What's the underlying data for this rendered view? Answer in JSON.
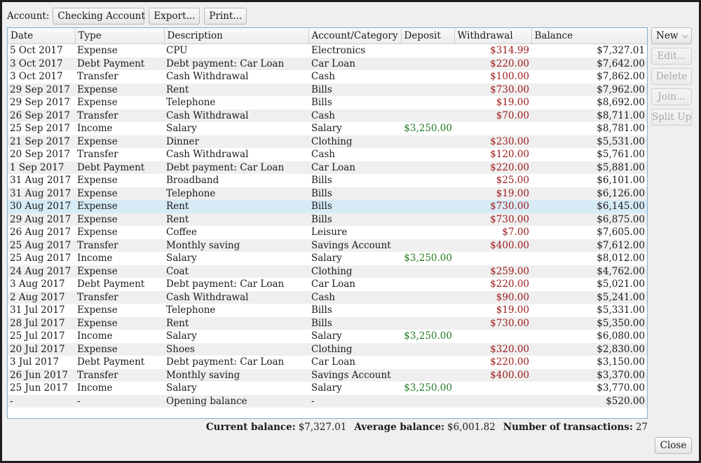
{
  "toolbar": {
    "account_label": "Account:",
    "account_value": "Checking Account",
    "export_label": "Export...",
    "print_label": "Print..."
  },
  "table": {
    "columns": [
      "Date",
      "Type",
      "Description",
      "Account/Category",
      "Deposit",
      "Withdrawal",
      "Balance"
    ],
    "rows": [
      [
        "5 Oct 2017",
        "Expense",
        "CPU",
        "Electronics",
        "",
        "$314.99",
        "$7,327.01"
      ],
      [
        "3 Oct 2017",
        "Debt Payment",
        "Debt payment: Car Loan",
        "Car Loan",
        "",
        "$220.00",
        "$7,642.00"
      ],
      [
        "3 Oct 2017",
        "Transfer",
        "Cash Withdrawal",
        "Cash",
        "",
        "$100.00",
        "$7,862.00"
      ],
      [
        "29 Sep 2017",
        "Expense",
        "Rent",
        "Bills",
        "",
        "$730.00",
        "$7,962.00"
      ],
      [
        "29 Sep 2017",
        "Expense",
        "Telephone",
        "Bills",
        "",
        "$19.00",
        "$8,692.00"
      ],
      [
        "26 Sep 2017",
        "Transfer",
        "Cash Withdrawal",
        "Cash",
        "",
        "$70.00",
        "$8,711.00"
      ],
      [
        "25 Sep 2017",
        "Income",
        "Salary",
        "Salary",
        "$3,250.00",
        "",
        "$8,781.00"
      ],
      [
        "21 Sep 2017",
        "Expense",
        "Dinner",
        "Clothing",
        "",
        "$230.00",
        "$5,531.00"
      ],
      [
        "20 Sep 2017",
        "Transfer",
        "Cash Withdrawal",
        "Cash",
        "",
        "$120.00",
        "$5,761.00"
      ],
      [
        "1 Sep 2017",
        "Debt Payment",
        "Debt payment: Car Loan",
        "Car Loan",
        "",
        "$220.00",
        "$5,881.00"
      ],
      [
        "31 Aug 2017",
        "Expense",
        "Broadband",
        "Bills",
        "",
        "$25.00",
        "$6,101.00"
      ],
      [
        "31 Aug 2017",
        "Expense",
        "Telephone",
        "Bills",
        "",
        "$19.00",
        "$6,126.00"
      ],
      [
        "30 Aug 2017",
        "Expense",
        "Rent",
        "Bills",
        "",
        "$730.00",
        "$6,145.00"
      ],
      [
        "29 Aug 2017",
        "Expense",
        "Rent",
        "Bills",
        "",
        "$730.00",
        "$6,875.00"
      ],
      [
        "26 Aug 2017",
        "Expense",
        "Coffee",
        "Leisure",
        "",
        "$7.00",
        "$7,605.00"
      ],
      [
        "25 Aug 2017",
        "Transfer",
        "Monthly saving",
        "Savings Account",
        "",
        "$400.00",
        "$7,612.00"
      ],
      [
        "25 Aug 2017",
        "Income",
        "Salary",
        "Salary",
        "$3,250.00",
        "",
        "$8,012.00"
      ],
      [
        "24 Aug 2017",
        "Expense",
        "Coat",
        "Clothing",
        "",
        "$259.00",
        "$4,762.00"
      ],
      [
        "3 Aug 2017",
        "Debt Payment",
        "Debt payment: Car Loan",
        "Car Loan",
        "",
        "$220.00",
        "$5,021.00"
      ],
      [
        "2 Aug 2017",
        "Transfer",
        "Cash Withdrawal",
        "Cash",
        "",
        "$90.00",
        "$5,241.00"
      ],
      [
        "31 Jul 2017",
        "Expense",
        "Telephone",
        "Bills",
        "",
        "$19.00",
        "$5,331.00"
      ],
      [
        "28 Jul 2017",
        "Expense",
        "Rent",
        "Bills",
        "",
        "$730.00",
        "$5,350.00"
      ],
      [
        "25 Jul 2017",
        "Income",
        "Salary",
        "Salary",
        "$3,250.00",
        "",
        "$6,080.00"
      ],
      [
        "20 Jul 2017",
        "Expense",
        "Shoes",
        "Clothing",
        "",
        "$320.00",
        "$2,830.00"
      ],
      [
        "3 Jul 2017",
        "Debt Payment",
        "Debt payment: Car Loan",
        "Car Loan",
        "",
        "$220.00",
        "$3,150.00"
      ],
      [
        "26 Jun 2017",
        "Transfer",
        "Monthly saving",
        "Savings Account",
        "",
        "$400.00",
        "$3,370.00"
      ],
      [
        "25 Jun 2017",
        "Income",
        "Salary",
        "Salary",
        "$3,250.00",
        "",
        "$3,770.00"
      ],
      [
        "-",
        "-",
        "Opening balance",
        "-",
        "",
        "",
        "$520.00"
      ]
    ],
    "selected_row": 12
  },
  "side_buttons": {
    "new_label": "New",
    "edit_label": "Edit...",
    "delete_label": "Delete",
    "join_label": "Join...",
    "split_label": "Split Up"
  },
  "summary": {
    "current_label": "Current balance:",
    "current_value": "$7,327.01",
    "average_label": "Average balance:",
    "average_value": "$6,001.82",
    "count_label": "Number of transactions:",
    "count_value": "27"
  },
  "close_label": "Close",
  "colors": {
    "deposit": "#1f7a1f",
    "withdrawal": "#a01a1a",
    "selection": "#d6ebf6",
    "table_border": "#7fb0cf"
  }
}
